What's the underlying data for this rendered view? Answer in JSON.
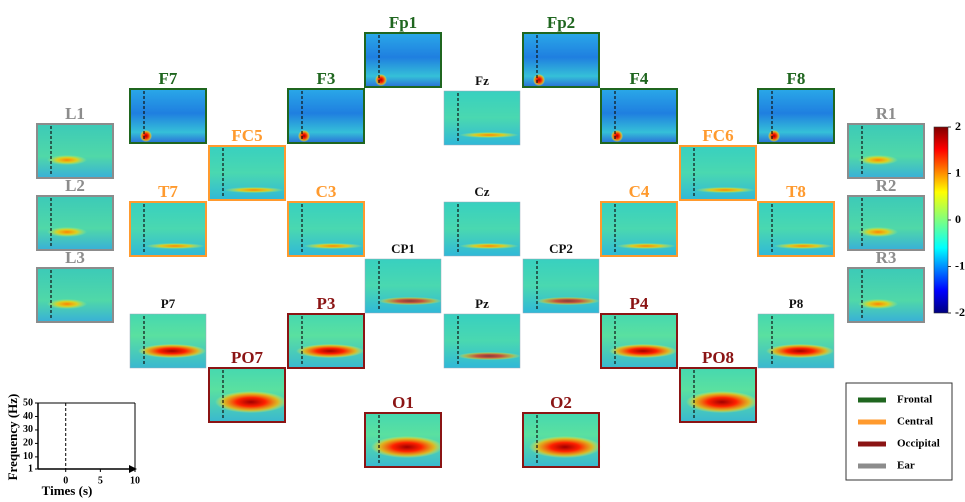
{
  "electrodes": [
    {
      "label": "Fp1",
      "group": 0
    },
    {
      "label": "Fp2",
      "group": 0
    },
    {
      "label": "F7",
      "group": 0
    },
    {
      "label": "F3",
      "group": 0
    },
    {
      "label": "Fz",
      "group": null
    },
    {
      "label": "F4",
      "group": 0
    },
    {
      "label": "F8",
      "group": 0
    },
    {
      "label": "L1",
      "group": 3
    },
    {
      "label": "R1",
      "group": 3
    },
    {
      "label": "FC5",
      "group": 1
    },
    {
      "label": "FC6",
      "group": 1
    },
    {
      "label": "L2",
      "group": 3
    },
    {
      "label": "R2",
      "group": 3
    },
    {
      "label": "T7",
      "group": 1
    },
    {
      "label": "C3",
      "group": 1
    },
    {
      "label": "Cz",
      "group": null
    },
    {
      "label": "C4",
      "group": 1
    },
    {
      "label": "T8",
      "group": 1
    },
    {
      "label": "L3",
      "group": 3
    },
    {
      "label": "R3",
      "group": 3
    },
    {
      "label": "CP1",
      "group": null
    },
    {
      "label": "CP2",
      "group": null
    },
    {
      "label": "P7",
      "group": null
    },
    {
      "label": "P3",
      "group": 2
    },
    {
      "label": "Pz",
      "group": null
    },
    {
      "label": "P4",
      "group": 2
    },
    {
      "label": "P8",
      "group": null
    },
    {
      "label": "PO7",
      "group": 2
    },
    {
      "label": "PO8",
      "group": 2
    },
    {
      "label": "O1",
      "group": 2
    },
    {
      "label": "O2",
      "group": 2
    }
  ],
  "legend": {
    "items": [
      {
        "label": "Frontal",
        "color": "#1f661f"
      },
      {
        "label": "Central",
        "color": "#ff9a2e"
      },
      {
        "label": "Occipital",
        "color": "#8b1414"
      },
      {
        "label": "Ear",
        "color": "#8c8c8c"
      }
    ]
  },
  "colorbar": {
    "lim": [
      -2,
      2
    ],
    "ticks": [
      2,
      1,
      0,
      -1,
      -2
    ]
  },
  "axes_key": {
    "ylabel": "Frequency (Hz)",
    "xlabel": "Times (s)",
    "ylim": [
      1,
      50
    ],
    "yticks": [
      1,
      10,
      20,
      30,
      40,
      50
    ],
    "xlim": [
      -4,
      10
    ],
    "xticks": [
      0,
      5,
      10
    ]
  }
}
